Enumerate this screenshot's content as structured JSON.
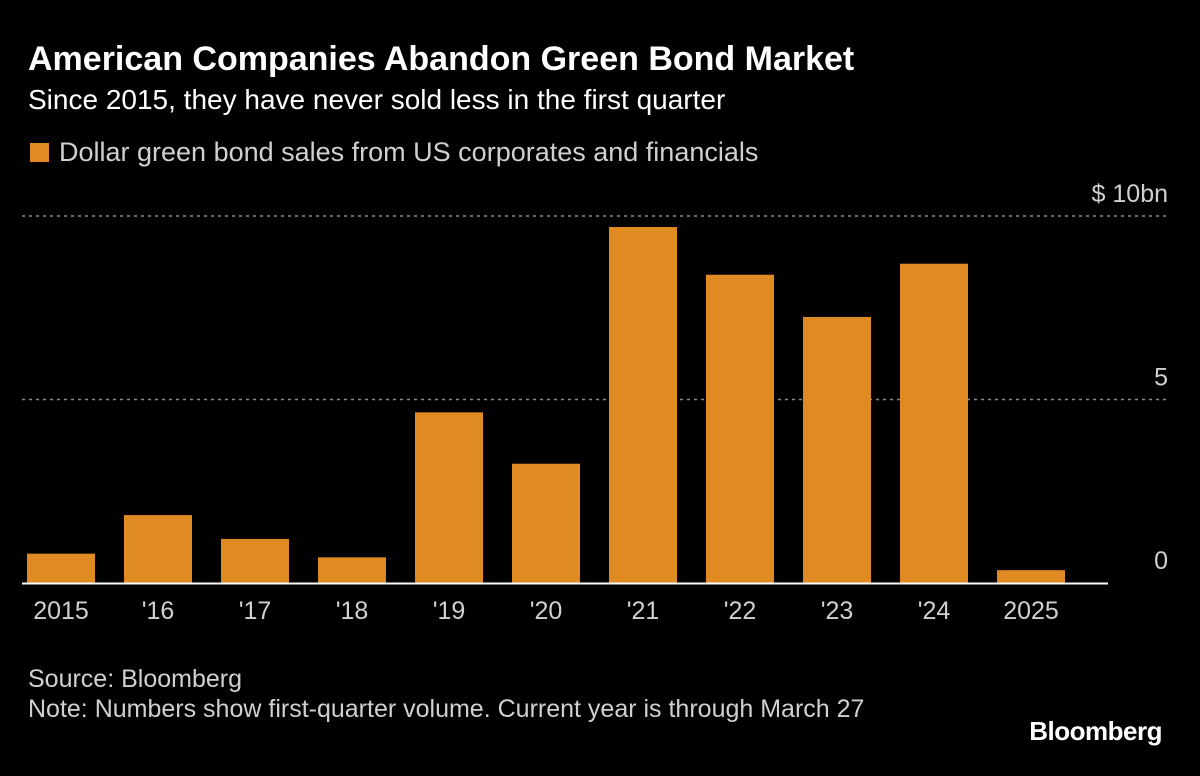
{
  "header": {
    "title": "American Companies Abandon Green Bond Market",
    "subtitle": "Since 2015, they have never sold less in the first quarter"
  },
  "legend": {
    "label": "Dollar green bond sales from US corporates and financials"
  },
  "footer": {
    "source": "Source: Bloomberg",
    "note": "Note: Numbers show first-quarter volume. Current year is through March 27",
    "brand": "Bloomberg"
  },
  "colors": {
    "background": "#000000",
    "bar": "#e08a22",
    "grid": "#8a8a8a",
    "axis": "#ffffff",
    "text": "#ffffff",
    "muted_text": "#d0d0d0"
  },
  "chart_data": {
    "type": "bar",
    "categories": [
      "2015",
      "'16",
      "'17",
      "'18",
      "'19",
      "'20",
      "'21",
      "'22",
      "'23",
      "'24",
      "2025"
    ],
    "series": [
      {
        "name": "Dollar green bond sales from US corporates and financials",
        "values": [
          0.8,
          1.85,
          1.2,
          0.7,
          4.65,
          3.25,
          9.7,
          8.4,
          7.25,
          8.7,
          0.35
        ]
      }
    ],
    "ylim": [
      0,
      10
    ],
    "yticks": [
      {
        "value": 0,
        "label": "0"
      },
      {
        "value": 5,
        "label": "5"
      },
      {
        "value": 10,
        "label": "$ 10bn"
      }
    ],
    "grid": true,
    "y_axis_position": "right",
    "legend_position": "top-left"
  }
}
